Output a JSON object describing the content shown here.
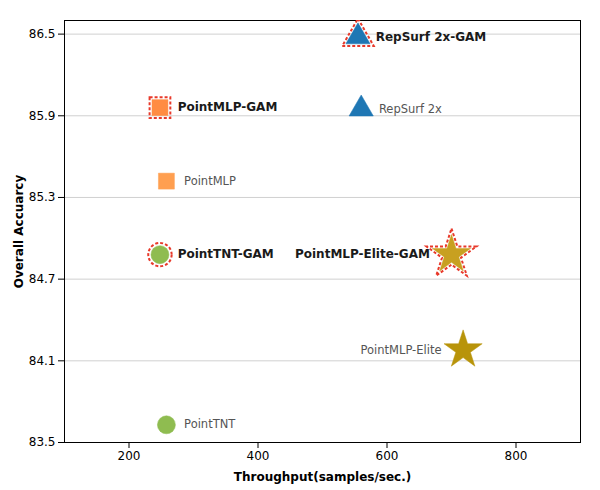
{
  "chart_data": {
    "type": "scatter",
    "xlabel": "Throughput(samples/sec.)",
    "ylabel": "Overall Accuarcy",
    "xlim": [
      100,
      900
    ],
    "ylim": [
      83.5,
      86.6
    ],
    "xticks": [
      200,
      400,
      600,
      800
    ],
    "yticks": [
      83.5,
      84.1,
      84.7,
      85.3,
      85.9,
      86.5
    ],
    "grid": "y",
    "series": [
      {
        "name": "RepSurf 2x-GAM",
        "color": "#1f77b4",
        "marker": "triangle",
        "line_style": "dashed",
        "x": [
          555
        ],
        "values": [
          86.48
        ]
      },
      {
        "name": "RepSurf 2x",
        "color": "#1f77b4",
        "marker": "triangle",
        "x": [
          560
        ],
        "values": [
          85.95
        ]
      },
      {
        "name": "PointMLP-GAM",
        "color": "#ff8c42",
        "marker": "square",
        "line_style": "dashed",
        "x": [
          248
        ],
        "values": [
          85.96
        ]
      },
      {
        "name": "PointMLP",
        "color": "#ff9f50",
        "marker": "square",
        "x": [
          258
        ],
        "values": [
          85.42
        ]
      },
      {
        "name": "PointMLP-Elite-GAM",
        "color": "#c8a020",
        "marker": "star",
        "line_style": "dashed",
        "x": [
          700
        ],
        "values": [
          84.88
        ]
      },
      {
        "name": "PointMLP-Elite",
        "color": "#b8940a",
        "marker": "star",
        "x": [
          718
        ],
        "values": [
          84.18
        ]
      },
      {
        "name": "PointTNT-GAM",
        "color": "#8fbc50",
        "marker": "circle",
        "line_style": "dashed",
        "x": [
          248
        ],
        "values": [
          84.88
        ]
      },
      {
        "name": "PointTNT",
        "color": "#8fbc50",
        "marker": "circle",
        "x": [
          258
        ],
        "values": [
          83.63
        ]
      }
    ]
  }
}
